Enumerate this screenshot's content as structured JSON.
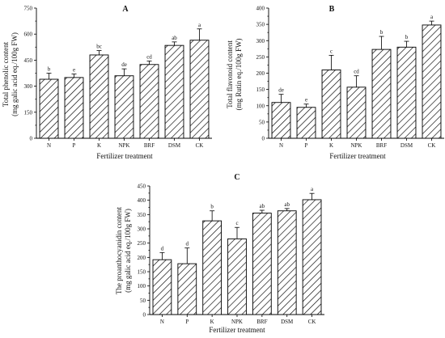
{
  "chart_data": [
    {
      "type": "bar",
      "panel": "A",
      "categories": [
        "N",
        "P",
        "K",
        "NPK",
        "BRF",
        "DSM",
        "CK"
      ],
      "values": [
        340,
        350,
        480,
        360,
        425,
        535,
        565
      ],
      "errors": [
        35,
        20,
        25,
        40,
        20,
        20,
        65
      ],
      "letters": [
        "b",
        "e",
        "bc",
        "de",
        "cd",
        "ab",
        "a"
      ],
      "ylabel_line1": "Total phenolic content",
      "ylabel_line2": "(mg galic acid eq./100g FW)",
      "xlabel": "Fertilizer treatment",
      "ylim": [
        0,
        750
      ],
      "yticks": [
        0,
        150,
        300,
        450,
        600,
        750
      ],
      "grid": false
    },
    {
      "type": "bar",
      "panel": "B",
      "categories": [
        "N",
        "P",
        "K",
        "NPK",
        "BRF",
        "DSM",
        "CK"
      ],
      "values": [
        110,
        95,
        210,
        157,
        273,
        280,
        348
      ],
      "errors": [
        25,
        10,
        45,
        35,
        40,
        18,
        12
      ],
      "letters": [
        "de",
        "e",
        "c",
        "cd",
        "b",
        "b",
        "a"
      ],
      "ylabel_line1": "Total flavonoid content",
      "ylabel_line2": "(mg Rutin eq./100g FW)",
      "xlabel": "Fertilizer treatment",
      "ylim": [
        0,
        400
      ],
      "yticks": [
        0,
        50,
        100,
        150,
        200,
        250,
        300,
        350,
        400
      ],
      "grid": false
    },
    {
      "type": "bar",
      "panel": "C",
      "categories": [
        "N",
        "P",
        "K",
        "NPK",
        "BRF",
        "DSM",
        "CK"
      ],
      "values": [
        192,
        178,
        328,
        265,
        355,
        363,
        402
      ],
      "errors": [
        25,
        55,
        35,
        40,
        10,
        8,
        22
      ],
      "letters": [
        "d",
        "d",
        "b",
        "c",
        "ab",
        "ab",
        "a"
      ],
      "ylabel_line1": "The proanthocyanidin content",
      "ylabel_line2": "(mg galic acid eq./100g FW)",
      "xlabel": "Fertilizer treatment",
      "ylim": [
        0,
        450
      ],
      "yticks": [
        0,
        50,
        100,
        150,
        200,
        250,
        300,
        350,
        400,
        450
      ],
      "grid": false
    }
  ]
}
